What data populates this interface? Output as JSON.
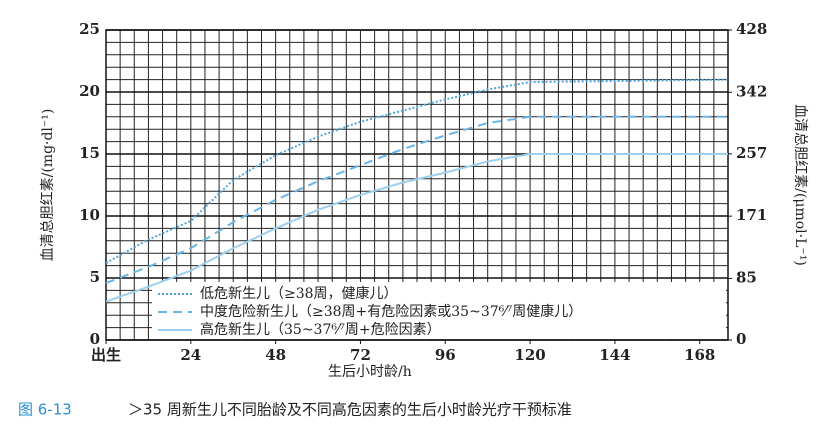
{
  "chart_data": {
    "type": "line",
    "x": [
      0,
      12,
      24,
      36,
      48,
      60,
      72,
      84,
      96,
      108,
      120,
      176
    ],
    "series": [
      {
        "name": "低危新生儿（≥38周，健康儿）",
        "color": "#4fa6de",
        "line_style": "dotted",
        "values": [
          6.2,
          8.1,
          9.6,
          12.9,
          14.9,
          16.4,
          17.6,
          18.5,
          19.4,
          20.2,
          20.8,
          21
        ]
      },
      {
        "name": "中度危险新生儿（≥38周+有危险因素或35~37⁶⁄⁷周健康儿）",
        "color": "#6ab6e6",
        "line_style": "dashed",
        "values": [
          4.6,
          5.9,
          7.4,
          9.5,
          11.3,
          12.8,
          14.1,
          15.4,
          16.5,
          17.5,
          18,
          18
        ]
      },
      {
        "name": "高危新生儿（35~37⁶⁄⁷周+危险因素）",
        "color": "#9ccff0",
        "line_style": "solid",
        "values": [
          3.1,
          4.3,
          5.6,
          7.4,
          9.0,
          10.5,
          11.7,
          12.7,
          13.5,
          14.4,
          15,
          15
        ]
      }
    ],
    "xlim": [
      0,
      176
    ],
    "xticks": [
      {
        "value": 0,
        "label": "出生"
      },
      24,
      48,
      72,
      96,
      120,
      144,
      168
    ],
    "ylim": [
      0,
      25
    ],
    "yticks": [
      0,
      5,
      10,
      15,
      20,
      25
    ],
    "y2lim": [
      0,
      428
    ],
    "y2ticks": [
      0,
      85,
      171,
      257,
      342,
      428
    ],
    "xlabel": "生后小时龄/h",
    "ylabel": "血清总胆红素/(mg·dl⁻¹)",
    "y2label": "血清总胆红素/(μmol·L⁻¹)",
    "grid": true,
    "legend": "lower left",
    "figure_label": "图 6-13",
    "caption": "＞35 周新生儿不同胎龄及不同高危因素的生后小时龄光疗干预标准"
  }
}
